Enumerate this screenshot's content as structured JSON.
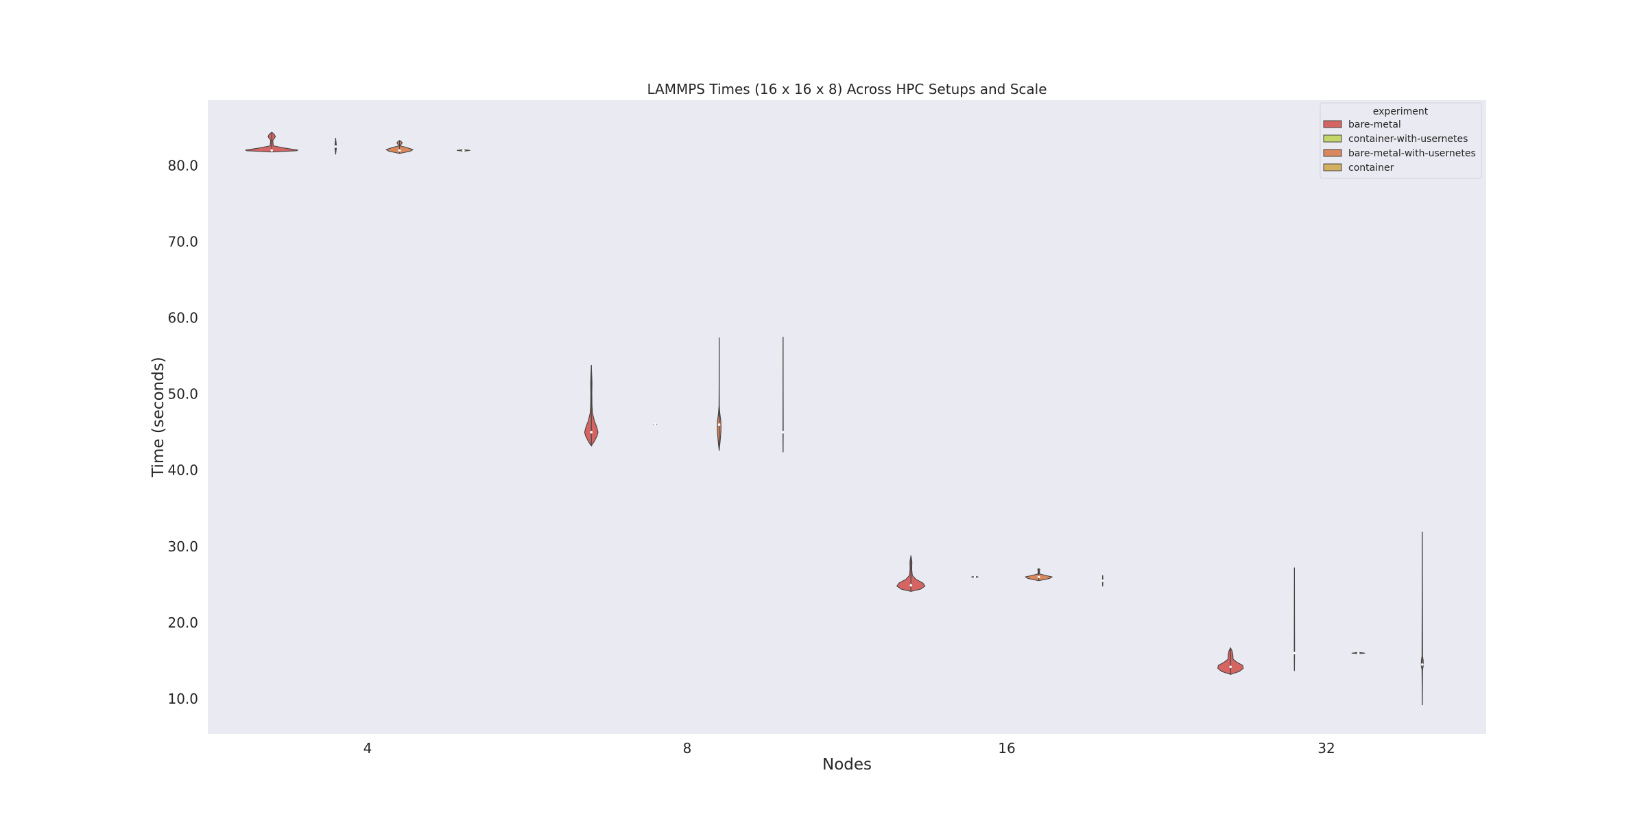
{
  "chart_data": {
    "type": "violin",
    "title": "LAMMPS Times (16 x 16 x 8) Across HPC Setups and Scale",
    "xlabel": "Nodes",
    "ylabel": "Time (seconds)",
    "categories": [
      "4",
      "8",
      "16",
      "32"
    ],
    "ylim": [
      5.4,
      88.6
    ],
    "yticks": [
      10.0,
      20.0,
      30.0,
      40.0,
      50.0,
      60.0,
      70.0,
      80.0
    ],
    "ytick_labels": [
      "10.0",
      "20.0",
      "30.0",
      "40.0",
      "50.0",
      "60.0",
      "70.0",
      "80.0"
    ],
    "grid": false,
    "legend": {
      "title": "experiment",
      "placement": "top-right",
      "entries": [
        "bare-metal",
        "container-with-usernetes",
        "bare-metal-with-usernetes",
        "container"
      ]
    },
    "series": [
      {
        "name": "bare-metal",
        "color": "#d46563",
        "violins": [
          {
            "category": "4",
            "min": 81.8,
            "max": 84.4,
            "median": 82.0,
            "width": 0.82,
            "profile": [
              [
                81.8,
                0.0
              ],
              [
                81.95,
                0.95
              ],
              [
                82.05,
                1.0
              ],
              [
                82.3,
                0.5
              ],
              [
                82.6,
                0.06
              ],
              [
                83.3,
                0.04
              ],
              [
                83.8,
                0.14
              ],
              [
                84.1,
                0.1
              ],
              [
                84.4,
                0.0
              ]
            ]
          },
          {
            "category": "8",
            "min": 43.2,
            "max": 53.8,
            "median": 45.0,
            "width": 0.21,
            "profile": [
              [
                43.2,
                0.0
              ],
              [
                43.8,
                0.45
              ],
              [
                44.5,
                0.85
              ],
              [
                45.0,
                1.0
              ],
              [
                45.7,
                0.8
              ],
              [
                46.5,
                0.45
              ],
              [
                47.5,
                0.18
              ],
              [
                48.5,
                0.1
              ],
              [
                50.0,
                0.08
              ],
              [
                51.5,
                0.1
              ],
              [
                52.5,
                0.06
              ],
              [
                53.8,
                0.0
              ]
            ]
          },
          {
            "category": "16",
            "min": 24.1,
            "max": 28.8,
            "median": 24.9,
            "width": 0.44,
            "profile": [
              [
                24.1,
                0.0
              ],
              [
                24.4,
                0.7
              ],
              [
                24.8,
                1.0
              ],
              [
                25.2,
                0.85
              ],
              [
                25.7,
                0.35
              ],
              [
                26.2,
                0.1
              ],
              [
                27.0,
                0.06
              ],
              [
                28.0,
                0.07
              ],
              [
                28.8,
                0.0
              ]
            ]
          },
          {
            "category": "32",
            "min": 13.2,
            "max": 16.7,
            "median": 14.2,
            "width": 0.4,
            "profile": [
              [
                13.2,
                0.0
              ],
              [
                13.6,
                0.7
              ],
              [
                14.0,
                1.0
              ],
              [
                14.4,
                0.95
              ],
              [
                14.8,
                0.5
              ],
              [
                15.2,
                0.2
              ],
              [
                15.8,
                0.18
              ],
              [
                16.3,
                0.12
              ],
              [
                16.7,
                0.0
              ]
            ]
          }
        ]
      },
      {
        "name": "container-with-usernetes",
        "color": "#c4d669",
        "violins": [
          {
            "category": "4",
            "min": 81.5,
            "max": 83.6,
            "median": 82.5,
            "width": 0.02,
            "profile": [
              [
                81.5,
                0.0
              ],
              [
                82.2,
                1.0
              ],
              [
                82.8,
                1.0
              ],
              [
                83.6,
                0.0
              ]
            ]
          },
          {
            "category": "8",
            "min": 45.9,
            "max": 46.1,
            "median": 46.0,
            "width": 0.05,
            "profile": [
              [
                45.9,
                0.0
              ],
              [
                46.0,
                1.0
              ],
              [
                46.1,
                0.0
              ]
            ]
          },
          {
            "category": "16",
            "min": 25.9,
            "max": 26.1,
            "median": 26.0,
            "width": 0.1,
            "profile": [
              [
                25.9,
                0.0
              ],
              [
                26.0,
                1.0
              ],
              [
                26.1,
                0.0
              ]
            ]
          },
          {
            "category": "32",
            "min": 13.7,
            "max": 27.2,
            "median": 16.0,
            "width": 0.006,
            "profile": [
              [
                13.7,
                0.0
              ],
              [
                16.0,
                1.0
              ],
              [
                27.2,
                0.0
              ]
            ]
          }
        ]
      },
      {
        "name": "bare-metal-with-usernetes",
        "color": "#d9885e",
        "violins": [
          {
            "category": "4",
            "min": 81.6,
            "max": 83.3,
            "median": 82.0,
            "width": 0.42,
            "profile": [
              [
                81.6,
                0.0
              ],
              [
                81.9,
                0.8
              ],
              [
                82.1,
                1.0
              ],
              [
                82.4,
                0.5
              ],
              [
                82.6,
                0.05
              ],
              [
                82.8,
                0.12
              ],
              [
                83.0,
                0.2
              ],
              [
                83.2,
                0.1
              ],
              [
                83.3,
                0.0
              ]
            ]
          },
          {
            "category": "8",
            "min": 42.6,
            "max": 57.4,
            "median": 46.0,
            "width": 0.06,
            "profile": [
              [
                42.6,
                0.0
              ],
              [
                43.5,
                0.4
              ],
              [
                44.5,
                0.75
              ],
              [
                45.5,
                1.0
              ],
              [
                46.5,
                0.85
              ],
              [
                47.5,
                0.35
              ],
              [
                48.5,
                0.08
              ],
              [
                51.0,
                0.03
              ],
              [
                54.0,
                0.03
              ],
              [
                57.4,
                0.0
              ]
            ]
          },
          {
            "category": "16",
            "min": 25.5,
            "max": 27.1,
            "median": 26.0,
            "width": 0.42,
            "profile": [
              [
                25.5,
                0.0
              ],
              [
                25.8,
                0.8
              ],
              [
                26.0,
                1.0
              ],
              [
                26.2,
                0.5
              ],
              [
                26.4,
                0.06
              ],
              [
                26.8,
                0.05
              ],
              [
                27.0,
                0.08
              ],
              [
                27.1,
                0.0
              ]
            ]
          },
          {
            "category": "32",
            "min": 15.9,
            "max": 16.1,
            "median": 16.0,
            "width": 0.2,
            "profile": [
              [
                15.9,
                0.0
              ],
              [
                16.0,
                1.0
              ],
              [
                16.1,
                0.0
              ]
            ]
          }
        ]
      },
      {
        "name": "container",
        "color": "#d3b05f",
        "violins": [
          {
            "category": "4",
            "min": 81.9,
            "max": 82.1,
            "median": 82.0,
            "width": 0.2,
            "profile": [
              [
                81.9,
                0.0
              ],
              [
                82.0,
                1.0
              ],
              [
                82.1,
                0.0
              ]
            ]
          },
          {
            "category": "8",
            "min": 42.4,
            "max": 57.5,
            "median": 45.0,
            "width": 0.006,
            "profile": [
              [
                42.4,
                0.0
              ],
              [
                45.0,
                1.0
              ],
              [
                57.5,
                0.0
              ]
            ]
          },
          {
            "category": "16",
            "min": 24.8,
            "max": 26.2,
            "median": 25.5,
            "width": 0.01,
            "profile": [
              [
                24.8,
                0.0
              ],
              [
                25.5,
                1.0
              ],
              [
                26.2,
                0.0
              ]
            ]
          },
          {
            "category": "32",
            "min": 9.2,
            "max": 31.9,
            "median": 14.5,
            "width": 0.03,
            "profile": [
              [
                9.2,
                0.0
              ],
              [
                13.8,
                0.3
              ],
              [
                14.3,
                1.0
              ],
              [
                15.0,
                1.0
              ],
              [
                15.6,
                0.3
              ],
              [
                31.9,
                0.0
              ]
            ]
          }
        ]
      }
    ]
  }
}
